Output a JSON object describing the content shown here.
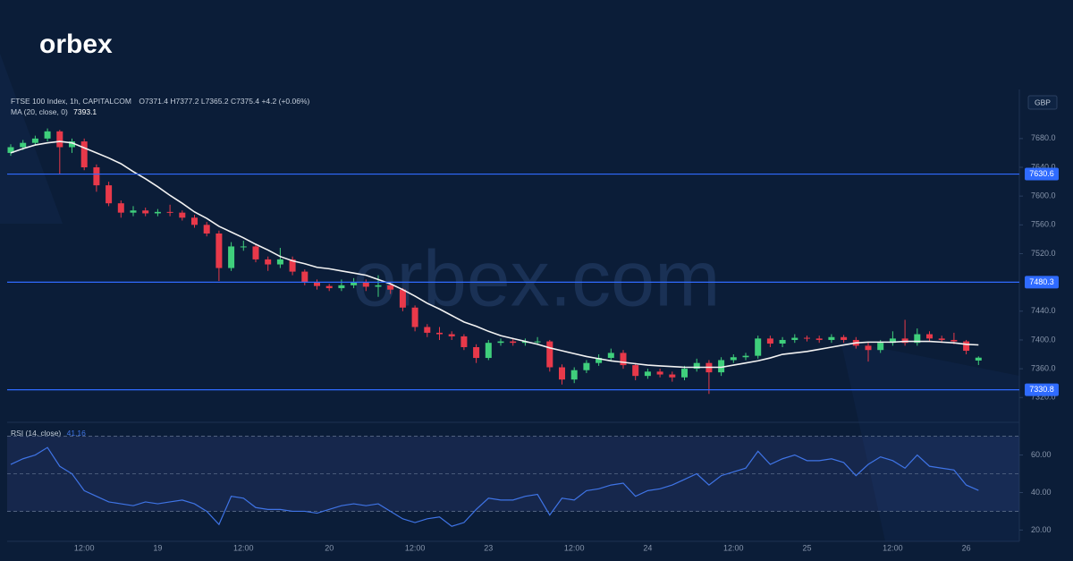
{
  "brand": "orbex",
  "watermark": "orbex.com",
  "chart_data": {
    "type": "candlestick",
    "title": "FTSE 100 Index, 1h, CAPITALCOM",
    "currency": "GBP",
    "ohlc_labels": [
      "O",
      "H",
      "L",
      "C"
    ],
    "change": "+4.2 (+0.06%)",
    "up_color": "#3fcf7c",
    "down_color": "#e8394a",
    "categories": [
      null,
      null,
      null,
      null,
      null,
      null,
      "12:00",
      null,
      null,
      null,
      null,
      null,
      "19",
      null,
      null,
      null,
      null,
      null,
      null,
      "12:00",
      null,
      null,
      null,
      null,
      null,
      null,
      "20",
      null,
      null,
      null,
      null,
      null,
      null,
      "12:00",
      null,
      null,
      null,
      null,
      null,
      "23",
      null,
      null,
      null,
      null,
      null,
      null,
      "12:00",
      null,
      null,
      null,
      null,
      null,
      "24",
      null,
      null,
      null,
      null,
      null,
      null,
      "12:00",
      null,
      null,
      null,
      null,
      null,
      "25",
      null,
      null,
      null,
      null,
      null,
      null,
      "12:00",
      null,
      null,
      null,
      null,
      null,
      "26",
      null
    ],
    "ohlc": [
      [
        7660,
        7672,
        7656,
        7668
      ],
      [
        7668,
        7678,
        7664,
        7674
      ],
      [
        7674,
        7684,
        7670,
        7680
      ],
      [
        7680,
        7694,
        7676,
        7690
      ],
      [
        7690,
        7692,
        7630,
        7668
      ],
      [
        7668,
        7680,
        7660,
        7676
      ],
      [
        7676,
        7680,
        7636,
        7640
      ],
      [
        7640,
        7644,
        7606,
        7615
      ],
      [
        7615,
        7620,
        7586,
        7590
      ],
      [
        7590,
        7594,
        7570,
        7577
      ],
      [
        7577,
        7586,
        7572,
        7580
      ],
      [
        7580,
        7584,
        7572,
        7576
      ],
      [
        7576,
        7582,
        7572,
        7578
      ],
      [
        7578,
        7588,
        7572,
        7577
      ],
      [
        7577,
        7580,
        7566,
        7570
      ],
      [
        7570,
        7574,
        7556,
        7560
      ],
      [
        7560,
        7564,
        7544,
        7548
      ],
      [
        7548,
        7552,
        7482,
        7500
      ],
      [
        7500,
        7536,
        7496,
        7530
      ],
      [
        7530,
        7538,
        7524,
        7530
      ],
      [
        7530,
        7534,
        7508,
        7512
      ],
      [
        7512,
        7516,
        7496,
        7505
      ],
      [
        7505,
        7528,
        7500,
        7512
      ],
      [
        7512,
        7516,
        7490,
        7495
      ],
      [
        7495,
        7498,
        7476,
        7480
      ],
      [
        7480,
        7484,
        7470,
        7475
      ],
      [
        7475,
        7478,
        7468,
        7472
      ],
      [
        7472,
        7484,
        7468,
        7476
      ],
      [
        7476,
        7486,
        7472,
        7480
      ],
      [
        7480,
        7484,
        7468,
        7474
      ],
      [
        7474,
        7490,
        7460,
        7476
      ],
      [
        7476,
        7480,
        7464,
        7470
      ],
      [
        7470,
        7472,
        7440,
        7445
      ],
      [
        7445,
        7448,
        7412,
        7418
      ],
      [
        7418,
        7422,
        7404,
        7410
      ],
      [
        7410,
        7418,
        7400,
        7408
      ],
      [
        7408,
        7412,
        7400,
        7405
      ],
      [
        7405,
        7408,
        7386,
        7390
      ],
      [
        7390,
        7394,
        7368,
        7375
      ],
      [
        7375,
        7400,
        7372,
        7396
      ],
      [
        7396,
        7402,
        7392,
        7398
      ],
      [
        7398,
        7402,
        7392,
        7396
      ],
      [
        7396,
        7402,
        7392,
        7398
      ],
      [
        7398,
        7404,
        7394,
        7398
      ],
      [
        7398,
        7400,
        7356,
        7362
      ],
      [
        7362,
        7366,
        7338,
        7345
      ],
      [
        7345,
        7362,
        7340,
        7358
      ],
      [
        7358,
        7372,
        7354,
        7368
      ],
      [
        7368,
        7380,
        7364,
        7375
      ],
      [
        7375,
        7388,
        7370,
        7382
      ],
      [
        7382,
        7386,
        7360,
        7365
      ],
      [
        7365,
        7368,
        7344,
        7350
      ],
      [
        7350,
        7360,
        7346,
        7356
      ],
      [
        7356,
        7360,
        7348,
        7352
      ],
      [
        7352,
        7356,
        7342,
        7348
      ],
      [
        7348,
        7364,
        7344,
        7360
      ],
      [
        7360,
        7374,
        7356,
        7368
      ],
      [
        7368,
        7372,
        7325,
        7355
      ],
      [
        7355,
        7376,
        7350,
        7372
      ],
      [
        7372,
        7380,
        7368,
        7376
      ],
      [
        7376,
        7382,
        7372,
        7378
      ],
      [
        7378,
        7406,
        7374,
        7402
      ],
      [
        7402,
        7406,
        7390,
        7395
      ],
      [
        7395,
        7404,
        7390,
        7400
      ],
      [
        7400,
        7408,
        7396,
        7403
      ],
      [
        7403,
        7406,
        7398,
        7402
      ],
      [
        7402,
        7406,
        7396,
        7400
      ],
      [
        7400,
        7408,
        7396,
        7404
      ],
      [
        7404,
        7407,
        7396,
        7400
      ],
      [
        7400,
        7404,
        7388,
        7392
      ],
      [
        7392,
        7396,
        7370,
        7386
      ],
      [
        7386,
        7400,
        7382,
        7396
      ],
      [
        7396,
        7412,
        7392,
        7402
      ],
      [
        7402,
        7428,
        7392,
        7396
      ],
      [
        7396,
        7416,
        7392,
        7408
      ],
      [
        7408,
        7412,
        7398,
        7402
      ],
      [
        7402,
        7406,
        7396,
        7400
      ],
      [
        7400,
        7410,
        7394,
        7398
      ],
      [
        7398,
        7400,
        7380,
        7385
      ],
      [
        7371.4,
        7377.2,
        7365.2,
        7375.4
      ]
    ],
    "ma": {
      "name": "MA (20, close, 0)",
      "color": "#f2f2f2",
      "values": [
        7660,
        7666,
        7671,
        7674,
        7676,
        7674,
        7667,
        7660,
        7653,
        7645,
        7634,
        7624,
        7613,
        7601,
        7590,
        7578,
        7569,
        7558,
        7550,
        7542,
        7533,
        7525,
        7516,
        7510,
        7506,
        7501,
        7499,
        7496,
        7493,
        7490,
        7484,
        7478,
        7470,
        7461,
        7451,
        7443,
        7434,
        7425,
        7419,
        7412,
        7406,
        7402,
        7398,
        7394,
        7389,
        7385,
        7381,
        7377,
        7374,
        7371,
        7369,
        7367,
        7365,
        7364,
        7363,
        7362,
        7362,
        7362,
        7362,
        7365,
        7368,
        7371,
        7375,
        7380,
        7382,
        7384,
        7387,
        7390,
        7393,
        7396,
        7397,
        7397,
        7397,
        7398,
        7398,
        7398,
        7397,
        7396,
        7394,
        7393.1
      ]
    },
    "levels": [
      7630.6,
      7480.3,
      7330.8
    ],
    "level_color": "#2f6bff",
    "ylim": [
      7288,
      7742
    ],
    "yticks": [
      {
        "value": 7680,
        "label": "7680.0"
      },
      {
        "value": 7640,
        "label": "7640.0"
      },
      {
        "value": 7600,
        "label": "7600.0"
      },
      {
        "value": 7560,
        "label": "7560.0"
      },
      {
        "value": 7520,
        "label": "7520.0"
      },
      {
        "value": 7440,
        "label": "7440.0"
      },
      {
        "value": 7400,
        "label": "7400.0"
      },
      {
        "value": 7360,
        "label": "7360.0"
      },
      {
        "value": 7320,
        "label": "7320.0"
      }
    ],
    "rsi": {
      "name": "RSI (14, close)",
      "color": "#3f74e6",
      "values": [
        55,
        58,
        60,
        64,
        54,
        50,
        41,
        38,
        35,
        34,
        33,
        35,
        34,
        35,
        36,
        34,
        30,
        23,
        38,
        37,
        32,
        31,
        31,
        30,
        30,
        29,
        31,
        33,
        34,
        33,
        34,
        30,
        26,
        24,
        26,
        27,
        22,
        24,
        31,
        37,
        36,
        36,
        38,
        39,
        28,
        37,
        36,
        41,
        42,
        44,
        45,
        38,
        41,
        42,
        44,
        47,
        50,
        44,
        49,
        51,
        53,
        62,
        55,
        58,
        60,
        57,
        57,
        58,
        56,
        49,
        55,
        59,
        57,
        53,
        60,
        54,
        53,
        52,
        44,
        41.16
      ],
      "levels": [
        70,
        50,
        30
      ],
      "ylim": [
        14,
        76
      ],
      "yticks": [
        {
          "value": 60,
          "label": "60.00"
        },
        {
          "value": 40,
          "label": "40.00"
        },
        {
          "value": 20,
          "label": "20.00"
        }
      ]
    }
  }
}
